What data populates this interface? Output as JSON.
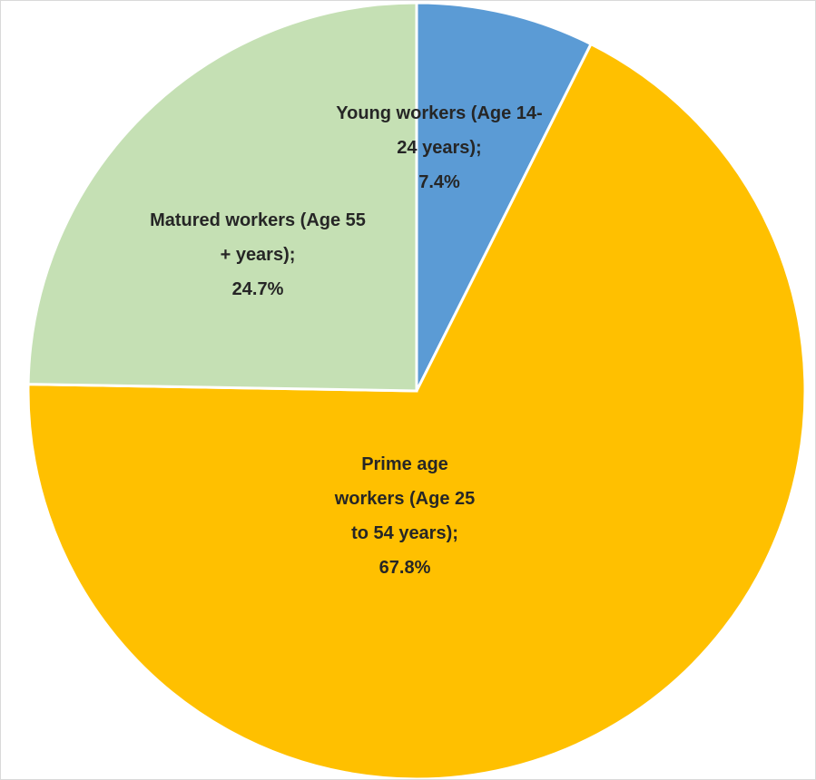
{
  "chart_data": {
    "type": "pie",
    "categories": [
      "Young workers (Age 14-24 years)",
      "Prime age workers (Age 25 to 54 years)",
      "Matured workers (Age 55 + years)"
    ],
    "values": [
      7.4,
      67.8,
      24.7
    ],
    "value_labels": [
      "7.4%",
      "67.8%",
      "24.7%"
    ],
    "label_separator": ";",
    "colors": [
      "#5b9bd5",
      "#ffc000",
      "#c5e0b4"
    ]
  }
}
